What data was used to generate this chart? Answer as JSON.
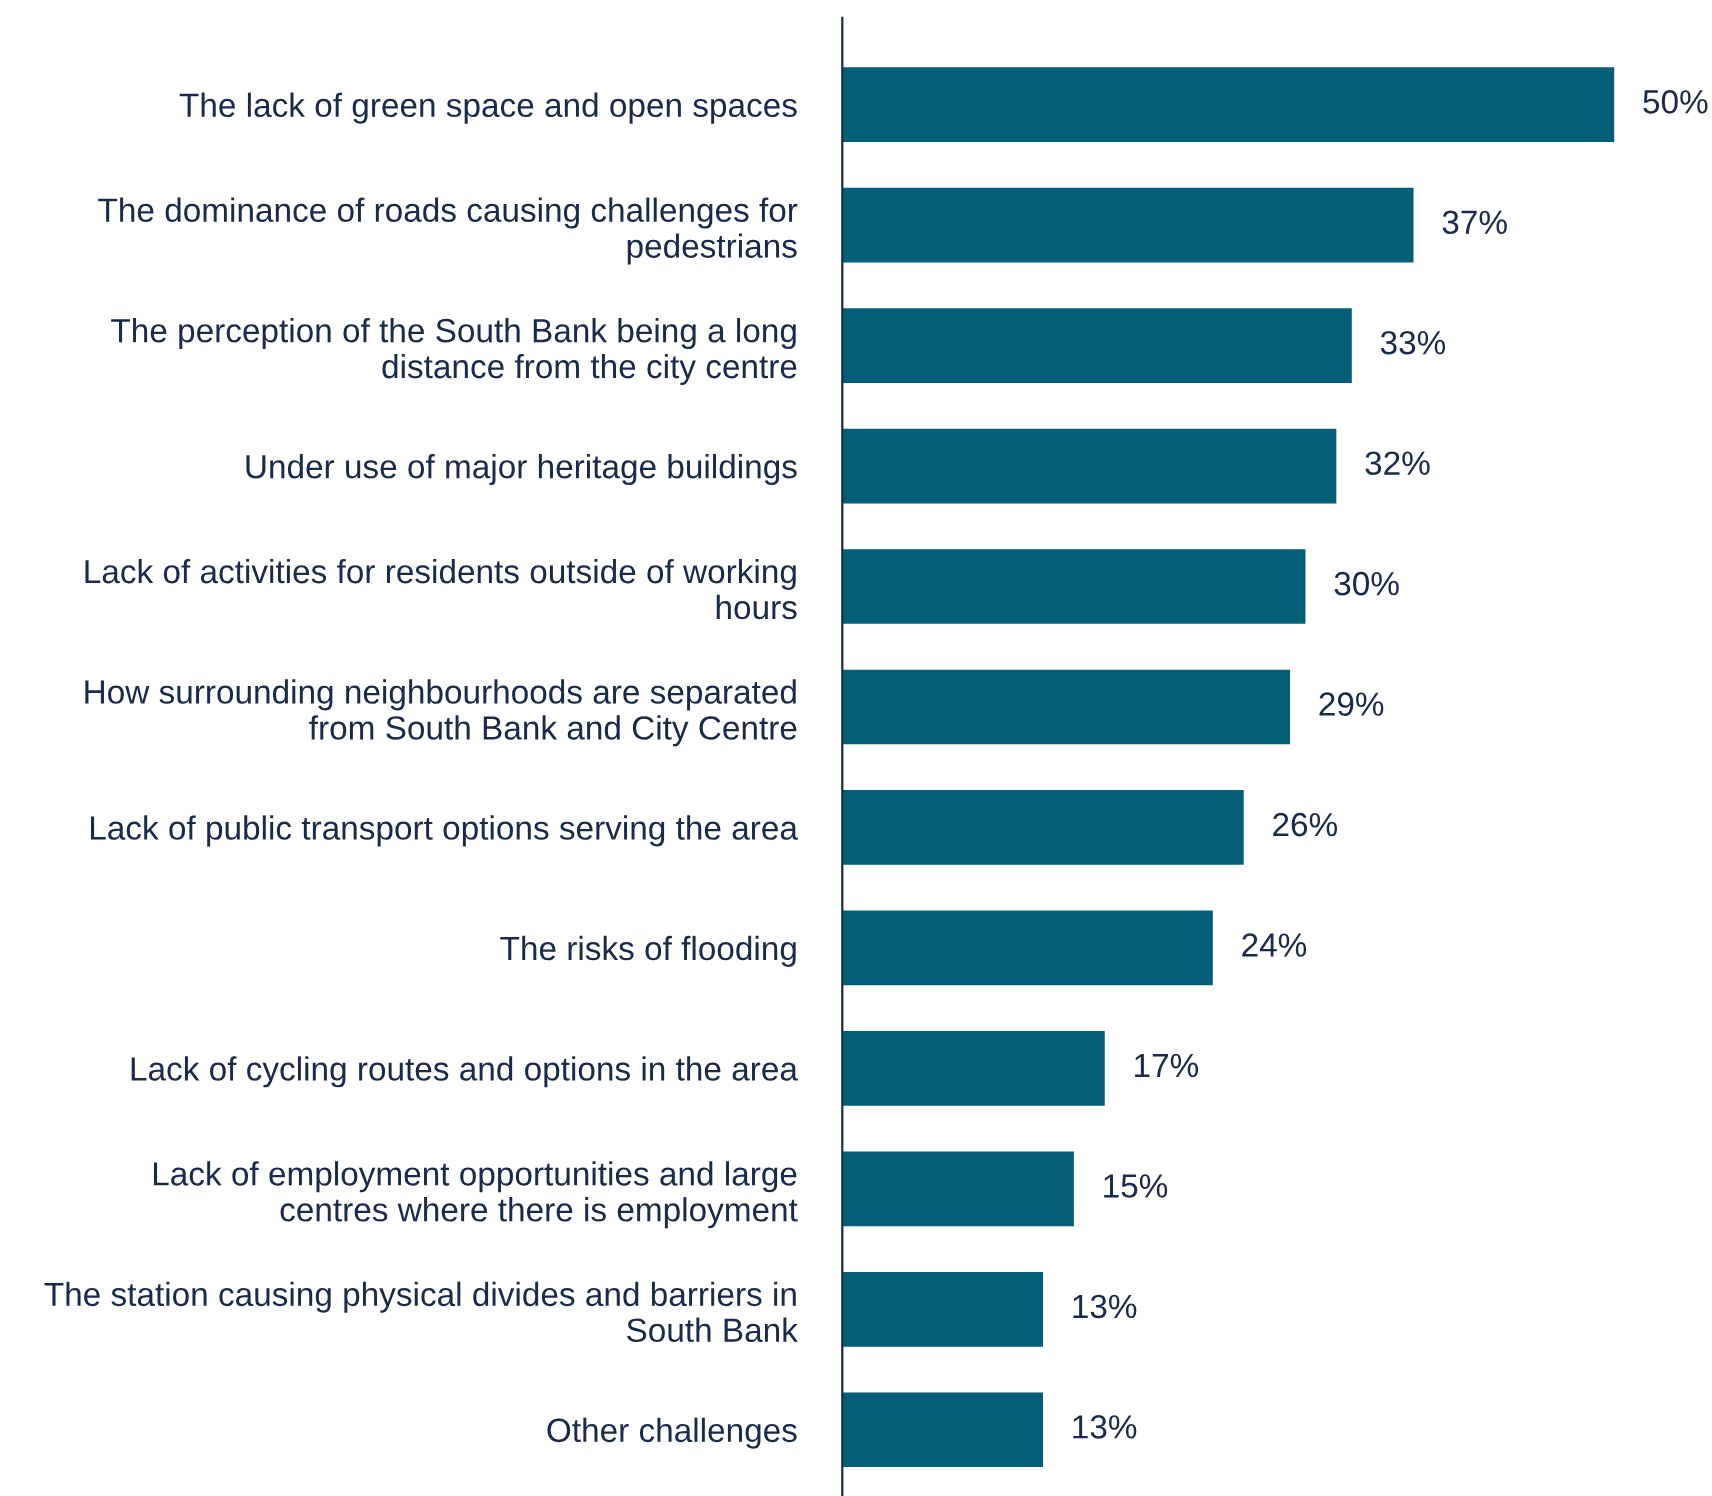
{
  "chart_data": {
    "type": "bar",
    "orientation": "horizontal",
    "categories": [
      "The lack of green space and open spaces",
      "The dominance of roads causing challenges for\npedestrians",
      "The perception of the South Bank being a long\ndistance from the city centre",
      "Under use of major heritage buildings",
      "Lack of activities for residents outside of working\nhours",
      "How surrounding neighbourhoods are separated\nfrom South Bank and City Centre",
      "Lack of public transport options serving the area",
      "The risks of flooding",
      "Lack of cycling routes and options in the area",
      "Lack of employment opportunities and large\ncentres where there is employment",
      "The station causing physical divides and barriers in\nSouth Bank",
      "Other challenges"
    ],
    "values": [
      50,
      37,
      33,
      32,
      30,
      29,
      26,
      24,
      17,
      15,
      13,
      13
    ],
    "value_labels": [
      "50%",
      "37%",
      "33%",
      "32%",
      "30%",
      "29%",
      "26%",
      "24%",
      "17%",
      "15%",
      "13%",
      "13%"
    ],
    "color": "#035e78",
    "grid": false,
    "legend": false,
    "tick_labels": "y"
  }
}
